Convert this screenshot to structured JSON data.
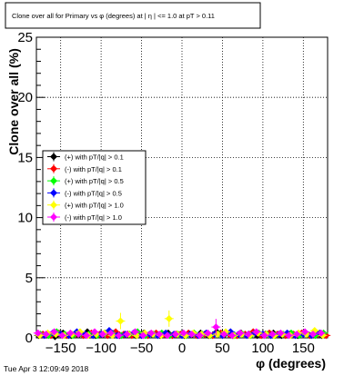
{
  "chart_data": {
    "type": "scatter",
    "title": "Clone  over all for Primary vs φ (degrees) at | η | <= 1.0 at pT > 0.11",
    "xlabel": "φ (degrees)",
    "ylabel": "Clone  over all (%)",
    "xlim": [
      -180,
      180
    ],
    "ylim": [
      0,
      25
    ],
    "x_ticks": [
      -150,
      -100,
      -50,
      0,
      50,
      100,
      150
    ],
    "x_tick_labels": [
      "−150",
      "−100",
      "−50",
      "0",
      "50",
      "100",
      "150"
    ],
    "y_ticks": [
      0,
      5,
      10,
      15,
      20,
      25
    ],
    "y_tick_labels": [
      "0",
      "5",
      "10",
      "15",
      "20",
      "25"
    ],
    "grid": true,
    "legend_position": "left",
    "series": [
      {
        "name": "(+) with pT/|q| > 0.1",
        "color": "#000000",
        "x": [
          -177,
          -167,
          -157,
          -147,
          -137,
          -127,
          -117,
          -107,
          -97,
          -87,
          -77,
          -67,
          -57,
          -47,
          -37,
          -27,
          -17,
          -7,
          3,
          13,
          23,
          33,
          43,
          53,
          63,
          73,
          83,
          93,
          103,
          113,
          123,
          133,
          143,
          153,
          163,
          173
        ],
        "y": [
          0.2,
          0.3,
          0.1,
          0.4,
          0.2,
          0.3,
          0.5,
          0.2,
          0.3,
          0.4,
          0.2,
          0.3,
          0.2,
          0.4,
          0.3,
          0.2,
          0.4,
          0.3,
          0.2,
          0.3,
          0.4,
          0.2,
          0.5,
          0.3,
          0.2,
          0.4,
          0.3,
          0.2,
          0.3,
          0.4,
          0.2,
          0.3,
          0.2,
          0.4,
          0.3,
          0.2
        ]
      },
      {
        "name": "(-) with pT/|q| > 0.1",
        "color": "#ff0000",
        "x": [
          -172,
          -162,
          -152,
          -142,
          -132,
          -122,
          -112,
          -102,
          -92,
          -82,
          -72,
          -62,
          -52,
          -42,
          -32,
          -22,
          -12,
          -2,
          8,
          18,
          28,
          38,
          48,
          58,
          68,
          78,
          88,
          98,
          108,
          118,
          128,
          138,
          148,
          158,
          168,
          178
        ],
        "y": [
          0.3,
          0.2,
          0.4,
          0.2,
          0.3,
          0.2,
          0.4,
          0.3,
          0.2,
          0.5,
          0.3,
          0.2,
          0.3,
          0.2,
          0.4,
          0.3,
          0.2,
          0.3,
          0.4,
          0.2,
          0.3,
          0.2,
          0.4,
          0.3,
          0.2,
          0.3,
          0.5,
          0.2,
          0.4,
          0.3,
          0.2,
          0.3,
          0.4,
          0.2,
          0.3,
          0.2
        ]
      },
      {
        "name": "(+) with pT/|q| > 0.5",
        "color": "#00ff00",
        "x": [
          -175,
          -165,
          -155,
          -145,
          -135,
          -125,
          -115,
          -105,
          -95,
          -85,
          -75,
          -65,
          -55,
          -45,
          -35,
          -25,
          -15,
          -5,
          5,
          15,
          25,
          35,
          45,
          55,
          65,
          75,
          85,
          95,
          105,
          115,
          125,
          135,
          145,
          155,
          165,
          175
        ],
        "y": [
          0.3,
          0.2,
          0.5,
          0.3,
          0.2,
          0.4,
          0.3,
          0.2,
          0.4,
          0.3,
          0.2,
          0.3,
          0.5,
          0.2,
          0.3,
          0.4,
          0.2,
          0.3,
          0.2,
          0.4,
          0.3,
          0.2,
          0.3,
          0.4,
          0.2,
          0.3,
          0.2,
          0.4,
          0.3,
          0.2,
          0.3,
          0.4,
          0.2,
          0.3,
          0.2,
          0.4
        ]
      },
      {
        "name": "(-) with pT/|q| > 0.5",
        "color": "#0000ff",
        "x": [
          -170,
          -160,
          -150,
          -140,
          -130,
          -120,
          -110,
          -100,
          -90,
          -80,
          -70,
          -60,
          -50,
          -40,
          -30,
          -20,
          -10,
          0,
          10,
          20,
          30,
          40,
          50,
          60,
          70,
          80,
          90,
          100,
          110,
          120,
          130,
          140,
          150,
          160,
          170
        ],
        "y": [
          0.2,
          0.4,
          0.3,
          0.2,
          0.5,
          0.3,
          0.2,
          0.3,
          0.6,
          0.2,
          0.3,
          0.4,
          0.2,
          0.3,
          0.2,
          0.4,
          0.3,
          0.2,
          0.3,
          0.2,
          0.4,
          0.3,
          0.2,
          0.5,
          0.3,
          0.2,
          0.4,
          0.3,
          0.2,
          0.3,
          0.4,
          0.2,
          0.3,
          0.2,
          0.4
        ]
      },
      {
        "name": "(+) with pT/|q| > 1.0",
        "color": "#ffff00",
        "x": [
          -176,
          -166,
          -156,
          -146,
          -136,
          -126,
          -116,
          -106,
          -96,
          -86,
          -76,
          -66,
          -56,
          -46,
          -36,
          -26,
          -16,
          -6,
          4,
          14,
          24,
          34,
          44,
          54,
          64,
          74,
          84,
          94,
          104,
          114,
          124,
          134,
          144,
          154,
          164,
          174
        ],
        "y": [
          0.2,
          0.4,
          0.3,
          0.2,
          0.3,
          0.5,
          0.2,
          0.3,
          0.4,
          0.2,
          1.4,
          0.3,
          0.2,
          0.4,
          0.3,
          0.2,
          1.6,
          0.3,
          0.2,
          0.4,
          0.3,
          0.2,
          0.3,
          0.5,
          0.2,
          0.3,
          0.2,
          0.4,
          0.3,
          0.2,
          0.3,
          0.2,
          0.4,
          0.3,
          0.6,
          0.2
        ]
      },
      {
        "name": "(-) with pT/|q| > 1.0",
        "color": "#ff00ff",
        "x": [
          -178,
          -168,
          -158,
          -148,
          -138,
          -128,
          -118,
          -108,
          -98,
          -88,
          -78,
          -68,
          -58,
          -48,
          -38,
          -28,
          -18,
          -8,
          2,
          12,
          22,
          32,
          42,
          52,
          62,
          72,
          82,
          92,
          102,
          112,
          122,
          132,
          142,
          152,
          162,
          172
        ],
        "y": [
          0.4,
          0.3,
          0.5,
          0.2,
          0.4,
          0.3,
          0.2,
          0.5,
          0.3,
          0.4,
          0.2,
          0.3,
          0.5,
          0.2,
          0.4,
          0.3,
          0.2,
          0.3,
          0.4,
          0.3,
          0.2,
          0.4,
          0.9,
          0.3,
          0.2,
          0.4,
          0.3,
          0.5,
          0.2,
          0.3,
          0.4,
          0.2,
          0.3,
          0.5,
          0.3,
          0.4
        ]
      }
    ]
  },
  "footer": {
    "timestamp": "Tue Apr  3 12:09:49 2018"
  }
}
